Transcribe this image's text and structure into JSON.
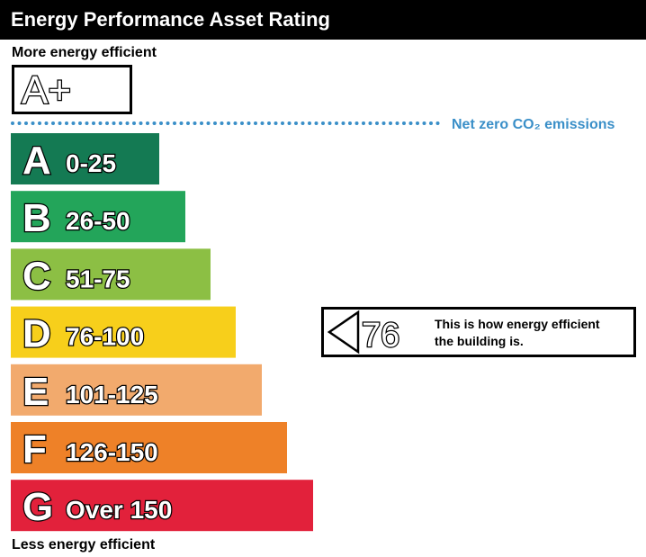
{
  "header": {
    "title": "Energy Performance Asset Rating"
  },
  "labels": {
    "top": "More energy efficient",
    "bottom": "Less energy efficient",
    "net_zero": "Net zero CO₂ emissions"
  },
  "best_rating": "A+",
  "bands": [
    {
      "letter": "A",
      "range": "0-25",
      "color": "#147a53"
    },
    {
      "letter": "B",
      "range": "26-50",
      "color": "#23a55a"
    },
    {
      "letter": "C",
      "range": "51-75",
      "color": "#8cbf44"
    },
    {
      "letter": "D",
      "range": "76-100",
      "color": "#f7cf1b"
    },
    {
      "letter": "E",
      "range": "101-125",
      "color": "#f2aa6d"
    },
    {
      "letter": "F",
      "range": "126-150",
      "color": "#ee8128"
    },
    {
      "letter": "G",
      "range": "Over 150",
      "color": "#e2213b"
    }
  ],
  "current": {
    "value": 76,
    "text_lines": [
      "This is how energy efficient",
      "the building is."
    ]
  }
}
